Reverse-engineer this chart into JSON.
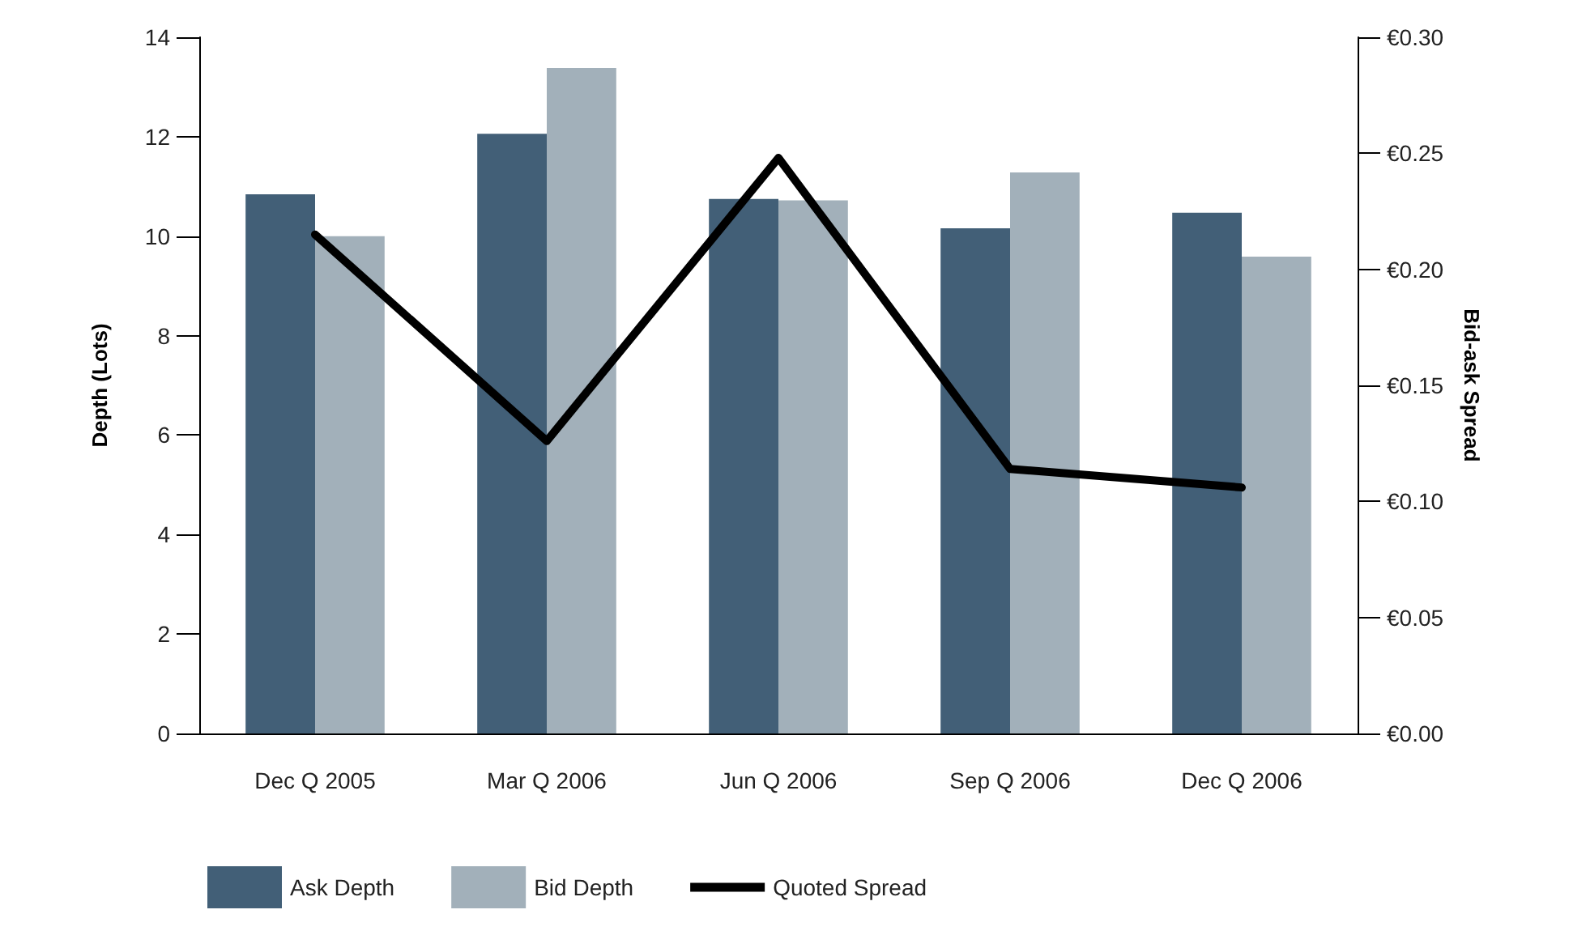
{
  "chart_data": {
    "type": "bar",
    "ylabel": "Depth (Lots)",
    "y2label": "Bid-ask Spread",
    "categories": [
      "Dec Q 2005",
      "Mar Q 2006",
      "Jun Q 2006",
      "Sep Q 2006",
      "Dec Q 2006"
    ],
    "series": [
      {
        "name": "Ask Depth",
        "color": "#425f77",
        "values": [
          10.84,
          12.06,
          10.75,
          10.16,
          10.47
        ]
      },
      {
        "name": "Bid Depth",
        "color": "#a2b0ba",
        "values": [
          10.0,
          13.38,
          10.72,
          11.28,
          9.59
        ]
      },
      {
        "name": "Quoted Spread",
        "type": "line",
        "axis": "y2",
        "color": "#000000",
        "values": [
          0.215,
          0.126,
          0.248,
          0.114,
          0.106
        ]
      }
    ],
    "ylim": [
      0,
      14
    ],
    "yticks": [
      0,
      2,
      4,
      6,
      8,
      10,
      12,
      14
    ],
    "y2lim": [
      0,
      0.3
    ],
    "y2ticks": [
      {
        "value": 0,
        "label": "€0.00"
      },
      {
        "value": 0.05,
        "label": "€0.05"
      },
      {
        "value": 0.1,
        "label": "€0.10"
      },
      {
        "value": 0.15,
        "label": "€0.15"
      },
      {
        "value": 0.2,
        "label": "€0.20"
      },
      {
        "value": 0.25,
        "label": "€0.25"
      },
      {
        "value": 0.3,
        "label": "€0.30"
      }
    ],
    "grid": false,
    "legend": "bottom",
    "marker": "none",
    "line_style": "solid"
  }
}
